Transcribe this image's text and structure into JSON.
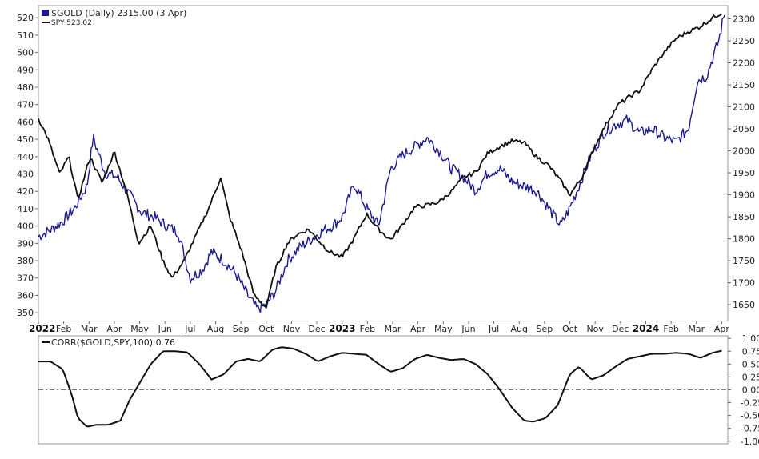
{
  "chart_data": [
    {
      "type": "line",
      "panel": "main",
      "legend": {
        "placement": "top-left",
        "gold_label": "$GOLD (Daily) 2315.00 (3 Apr)",
        "spy_label": "SPY 523.02"
      },
      "colors": {
        "gold": "#1a1a8c",
        "spy": "#111111"
      },
      "left_axis": {
        "ticks": [
          350,
          360,
          370,
          380,
          390,
          400,
          410,
          420,
          430,
          440,
          450,
          460,
          470,
          480,
          490,
          500,
          510,
          520
        ],
        "range": [
          345,
          527
        ]
      },
      "right_axis": {
        "ticks": [
          1650,
          1700,
          1750,
          1800,
          1850,
          1900,
          1950,
          2000,
          2050,
          2100,
          2150,
          2200,
          2250,
          2300
        ],
        "range": [
          1612,
          2330
        ]
      },
      "x_labels": [
        {
          "label": "2022",
          "bold": true
        },
        {
          "label": "Feb"
        },
        {
          "label": "Mar"
        },
        {
          "label": "Apr"
        },
        {
          "label": "May"
        },
        {
          "label": "Jun"
        },
        {
          "label": "Jul"
        },
        {
          "label": "Aug"
        },
        {
          "label": "Sep"
        },
        {
          "label": "Oct"
        },
        {
          "label": "Nov"
        },
        {
          "label": "Dec"
        },
        {
          "label": "2023",
          "bold": true
        },
        {
          "label": "Feb"
        },
        {
          "label": "Mar"
        },
        {
          "label": "Apr"
        },
        {
          "label": "May"
        },
        {
          "label": "Jun"
        },
        {
          "label": "Jul"
        },
        {
          "label": "Aug"
        },
        {
          "label": "Sep"
        },
        {
          "label": "Oct"
        },
        {
          "label": "Nov"
        },
        {
          "label": "Dec"
        },
        {
          "label": "2024",
          "bold": true
        },
        {
          "label": "Feb"
        },
        {
          "label": "Mar"
        },
        {
          "label": "Apr"
        }
      ],
      "x_range": [
        2022.0,
        2024.27
      ],
      "series": [
        {
          "name": "$GOLD",
          "axis": "right",
          "x": [
            2022.0,
            2022.04,
            2022.08,
            2022.12,
            2022.16,
            2022.18,
            2022.22,
            2022.26,
            2022.3,
            2022.34,
            2022.38,
            2022.42,
            2022.46,
            2022.5,
            2022.54,
            2022.57,
            2022.61,
            2022.65,
            2022.69,
            2022.72,
            2022.75,
            2022.78,
            2022.82,
            2022.86,
            2022.9,
            2022.94,
            2022.97,
            2023.0,
            2023.04,
            2023.08,
            2023.12,
            2023.16,
            2023.2,
            2023.24,
            2023.28,
            2023.32,
            2023.36,
            2023.4,
            2023.44,
            2023.48,
            2023.52,
            2023.56,
            2023.6,
            2023.64,
            2023.68,
            2023.72,
            2023.75,
            2023.78,
            2023.82,
            2023.86,
            2023.9,
            2023.94,
            2023.98,
            2024.02,
            2024.06,
            2024.1,
            2024.14,
            2024.17,
            2024.2,
            2024.24,
            2024.26
          ],
          "values": [
            1805,
            1820,
            1840,
            1870,
            1920,
            2030,
            1950,
            1940,
            1900,
            1860,
            1850,
            1830,
            1815,
            1710,
            1730,
            1770,
            1750,
            1720,
            1670,
            1640,
            1650,
            1680,
            1750,
            1780,
            1800,
            1820,
            1830,
            1850,
            1925,
            1870,
            1830,
            1960,
            1990,
            2010,
            2030,
            2000,
            1960,
            1940,
            1910,
            1950,
            1960,
            1930,
            1920,
            1910,
            1870,
            1830,
            1870,
            1920,
            1990,
            2040,
            2060,
            2070,
            2040,
            2050,
            2030,
            2020,
            2050,
            2160,
            2170,
            2250,
            2315
          ]
        },
        {
          "name": "SPY",
          "axis": "left",
          "x": [
            2022.0,
            2022.03,
            2022.07,
            2022.1,
            2022.13,
            2022.17,
            2022.21,
            2022.25,
            2022.29,
            2022.33,
            2022.37,
            2022.41,
            2022.44,
            2022.48,
            2022.52,
            2022.56,
            2022.6,
            2022.63,
            2022.67,
            2022.71,
            2022.75,
            2022.78,
            2022.82,
            2022.85,
            2022.89,
            2022.93,
            2022.96,
            2023.0,
            2023.04,
            2023.08,
            2023.12,
            2023.16,
            2023.2,
            2023.24,
            2023.28,
            2023.32,
            2023.36,
            2023.4,
            2023.44,
            2023.48,
            2023.52,
            2023.56,
            2023.6,
            2023.64,
            2023.68,
            2023.72,
            2023.75,
            2023.79,
            2023.83,
            2023.87,
            2023.91,
            2023.95,
            2023.98,
            2024.02,
            2024.06,
            2024.1,
            2024.14,
            2024.18,
            2024.22,
            2024.25
          ],
          "values": [
            462,
            451,
            430,
            440,
            415,
            440,
            425,
            443,
            420,
            390,
            400,
            380,
            370,
            380,
            395,
            410,
            428,
            405,
            385,
            360,
            353,
            375,
            390,
            395,
            398,
            390,
            385,
            382,
            393,
            407,
            398,
            392,
            401,
            411,
            412,
            414,
            420,
            428,
            431,
            442,
            446,
            449,
            448,
            440,
            435,
            426,
            418,
            428,
            445,
            459,
            470,
            475,
            478,
            490,
            500,
            508,
            512,
            515,
            520,
            523
          ]
        }
      ]
    },
    {
      "type": "line",
      "panel": "indicator",
      "legend": {
        "placement": "top-left",
        "label": "CORR($GOLD,SPY,100) 0.76"
      },
      "colors": {
        "line": "#111111",
        "zero_line": "#777777"
      },
      "y_axis": {
        "ticks": [
          1.0,
          0.75,
          0.5,
          0.25,
          0.0,
          -0.25,
          -0.5,
          -0.75,
          -1.0
        ],
        "tick_labels": [
          "1.00",
          "0.75",
          "0.50",
          "0.25",
          "0.00",
          "-0.25",
          "-0.50",
          "-0.75",
          "-1.00"
        ],
        "range": [
          -1.05,
          1.05
        ]
      },
      "x_range": [
        2022.0,
        2024.27
      ],
      "series": [
        {
          "name": "CORR($GOLD,SPY,100)",
          "x": [
            2022.0,
            2022.04,
            2022.08,
            2022.11,
            2022.13,
            2022.16,
            2022.19,
            2022.23,
            2022.27,
            2022.3,
            2022.33,
            2022.37,
            2022.41,
            2022.45,
            2022.49,
            2022.53,
            2022.57,
            2022.61,
            2022.65,
            2022.69,
            2022.73,
            2022.77,
            2022.8,
            2022.84,
            2022.88,
            2022.92,
            2022.96,
            2023.0,
            2023.04,
            2023.08,
            2023.12,
            2023.16,
            2023.2,
            2023.24,
            2023.28,
            2023.32,
            2023.36,
            2023.4,
            2023.44,
            2023.48,
            2023.52,
            2023.56,
            2023.6,
            2023.63,
            2023.67,
            2023.71,
            2023.75,
            2023.78,
            2023.82,
            2023.86,
            2023.9,
            2023.94,
            2023.98,
            2024.02,
            2024.06,
            2024.1,
            2024.14,
            2024.18,
            2024.22,
            2024.25
          ],
          "values": [
            0.55,
            0.55,
            0.4,
            -0.1,
            -0.55,
            -0.72,
            -0.68,
            -0.68,
            -0.6,
            -0.2,
            0.1,
            0.5,
            0.75,
            0.75,
            0.73,
            0.5,
            0.2,
            0.3,
            0.55,
            0.6,
            0.55,
            0.78,
            0.83,
            0.8,
            0.7,
            0.55,
            0.65,
            0.72,
            0.7,
            0.68,
            0.5,
            0.35,
            0.42,
            0.6,
            0.68,
            0.62,
            0.58,
            0.6,
            0.5,
            0.3,
            0.0,
            -0.35,
            -0.6,
            -0.62,
            -0.55,
            -0.3,
            0.3,
            0.45,
            0.2,
            0.28,
            0.45,
            0.6,
            0.65,
            0.7,
            0.7,
            0.72,
            0.7,
            0.62,
            0.72,
            0.76
          ]
        }
      ]
    }
  ]
}
